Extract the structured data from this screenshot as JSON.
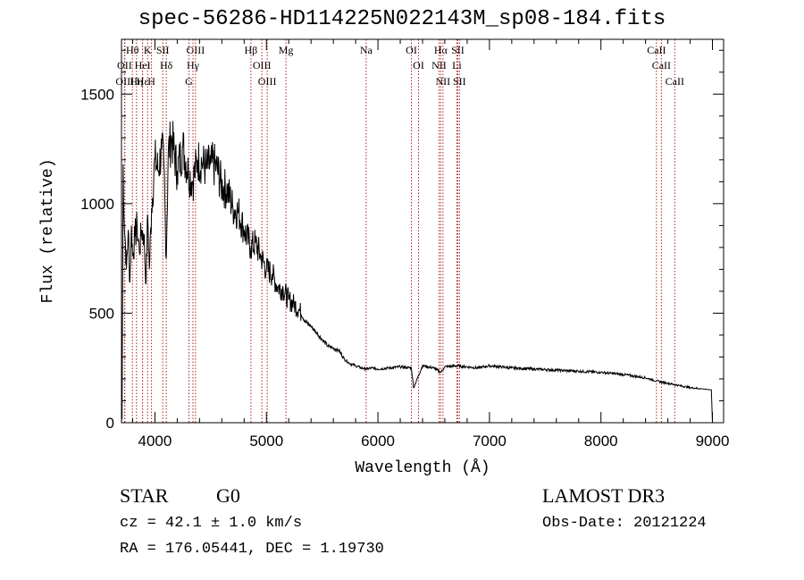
{
  "title": "spec-56286-HD114225N022143M_sp08-184.fits",
  "chart_data": {
    "type": "line",
    "title": "spec-56286-HD114225N022143M_sp08-184.fits",
    "xlabel": "Wavelength (Å)",
    "ylabel": "Flux (relative)",
    "xlim": [
      3700,
      9100
    ],
    "ylim": [
      0,
      1750
    ],
    "xticks": [
      4000,
      5000,
      6000,
      7000,
      8000,
      9000
    ],
    "yticks": [
      0,
      500,
      1000,
      1500
    ],
    "grid": false,
    "series": [
      {
        "name": "flux",
        "x": [
          3705,
          3715,
          3725,
          3735,
          3745,
          3760,
          3775,
          3790,
          3800,
          3820,
          3840,
          3860,
          3880,
          3900,
          3920,
          3935,
          3950,
          3970,
          4000,
          4030,
          4060,
          4080,
          4101,
          4120,
          4150,
          4200,
          4250,
          4300,
          4340,
          4380,
          4420,
          4460,
          4500,
          4550,
          4600,
          4650,
          4700,
          4750,
          4800,
          4861,
          4900,
          4950,
          5000,
          5050,
          5100,
          5150,
          5200,
          5250,
          5300,
          5350,
          5400,
          5450,
          5500,
          5550,
          5600,
          5650,
          5700,
          5750,
          5800,
          5850,
          5900,
          5950,
          6000,
          6100,
          6200,
          6300,
          6320,
          6400,
          6500,
          6563,
          6600,
          6700,
          6800,
          6900,
          7000,
          7200,
          7400,
          7600,
          7800,
          8000,
          8200,
          8400,
          8500,
          8600,
          8700,
          8800,
          8900,
          8990,
          9000
        ],
        "y": [
          15,
          1180,
          900,
          820,
          700,
          880,
          640,
          900,
          760,
          850,
          900,
          780,
          880,
          860,
          640,
          950,
          700,
          980,
          1200,
          1150,
          1250,
          1180,
          750,
          1240,
          1300,
          1150,
          1260,
          1140,
          1100,
          1200,
          1190,
          1160,
          1180,
          1170,
          1080,
          1060,
          980,
          960,
          880,
          800,
          820,
          760,
          700,
          680,
          620,
          610,
          560,
          540,
          510,
          460,
          440,
          410,
          380,
          350,
          340,
          330,
          290,
          270,
          260,
          250,
          245,
          250,
          245,
          250,
          255,
          250,
          160,
          260,
          250,
          230,
          255,
          260,
          255,
          250,
          260,
          250,
          245,
          240,
          235,
          230,
          220,
          205,
          190,
          180,
          170,
          160,
          155,
          150,
          0
        ]
      }
    ],
    "lines": [
      {
        "name": "Hθ",
        "wavelength": 3798
      },
      {
        "name": "OII",
        "wavelength": 3727
      },
      {
        "name": "OIII",
        "wavelength": 3730
      },
      {
        "name": "Hη",
        "wavelength": 3835
      },
      {
        "name": "HeI",
        "wavelength": 3889
      },
      {
        "name": "Hε",
        "wavelength": 3889
      },
      {
        "name": "K",
        "wavelength": 3934
      },
      {
        "name": "H",
        "wavelength": 3969
      },
      {
        "name": "SII",
        "wavelength": 4070
      },
      {
        "name": "Hδ",
        "wavelength": 4102
      },
      {
        "name": "OIII",
        "wavelength": 4364
      },
      {
        "name": "Hγ",
        "wavelength": 4341
      },
      {
        "name": "G",
        "wavelength": 4305
      },
      {
        "name": "Hβ",
        "wavelength": 4861
      },
      {
        "name": "OIII",
        "wavelength": 4959
      },
      {
        "name": "OIII",
        "wavelength": 5007
      },
      {
        "name": "Mg",
        "wavelength": 5175
      },
      {
        "name": "Na",
        "wavelength": 5894
      },
      {
        "name": "OI",
        "wavelength": 6300
      },
      {
        "name": "OI",
        "wavelength": 6364
      },
      {
        "name": "Hα",
        "wavelength": 6563
      },
      {
        "name": "NII",
        "wavelength": 6548
      },
      {
        "name": "NII",
        "wavelength": 6583
      },
      {
        "name": "SII",
        "wavelength": 6716
      },
      {
        "name": "Li",
        "wavelength": 6708
      },
      {
        "name": "SII",
        "wavelength": 6731
      },
      {
        "name": "CaII",
        "wavelength": 8498
      },
      {
        "name": "CaII",
        "wavelength": 8542
      },
      {
        "name": "CaII",
        "wavelength": 8662
      }
    ]
  },
  "info": {
    "class": "STAR",
    "subclass": "G0",
    "survey": "LAMOST DR3",
    "cz": "cz = 42.1 ± 1.0 km/s",
    "obsdate": "Obs-Date: 20121224",
    "radec": "RA = 176.05441, DEC =   1.19730"
  },
  "colors": {
    "lines": "#b22222",
    "spectrum": "#000000"
  }
}
